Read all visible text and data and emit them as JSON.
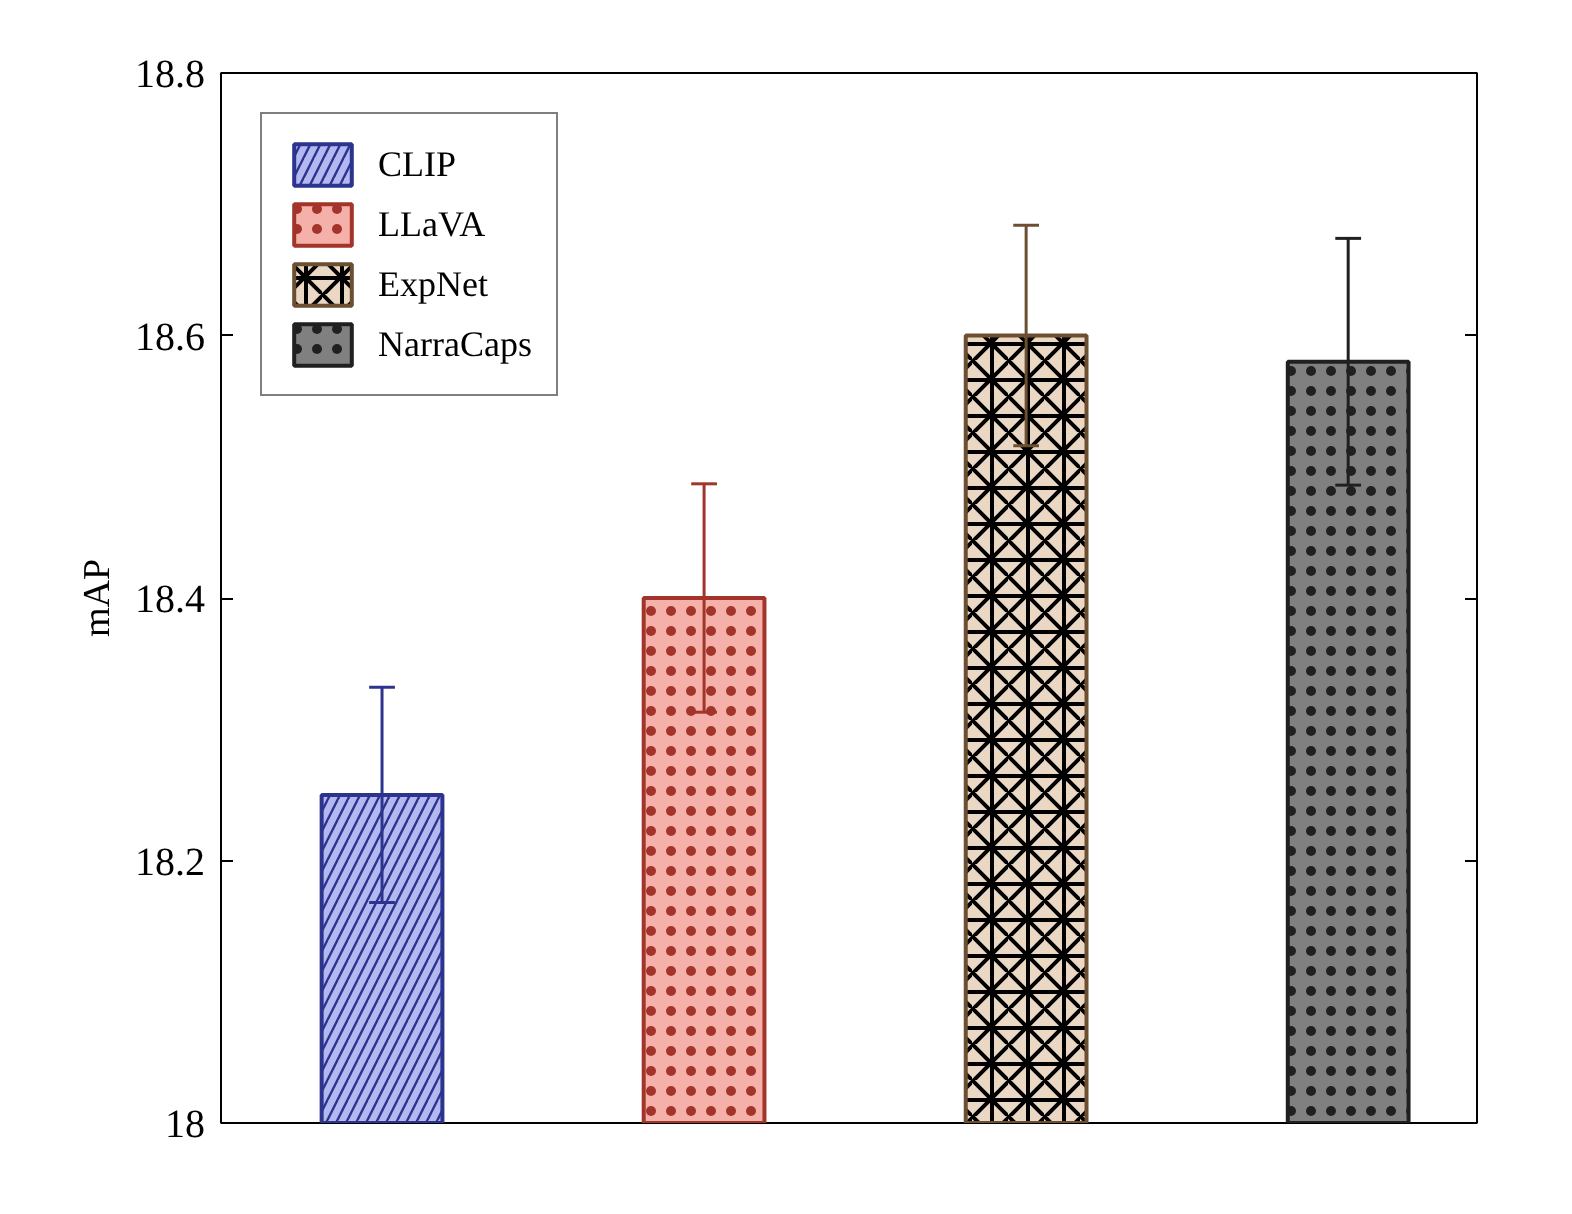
{
  "chart_data": {
    "type": "bar",
    "ylabel": "mAP",
    "categories": [
      null,
      null,
      null,
      null
    ],
    "series": [
      {
        "name": "CLIP",
        "color": "#b3b8f0",
        "values": [
          18.25,
          null,
          null,
          null
        ],
        "errors": [
          0.082,
          null,
          null,
          null
        ]
      },
      {
        "name": "LLaVA",
        "color": "#f5b0aa",
        "values": [
          null,
          18.4,
          null,
          null
        ],
        "errors": [
          null,
          0.087,
          null,
          null
        ]
      },
      {
        "name": "ExpNet",
        "color": "#ead8c5",
        "values": [
          null,
          null,
          18.6,
          null
        ],
        "errors": [
          null,
          null,
          0.084,
          null
        ]
      },
      {
        "name": "NarraCaps",
        "color": "#808080",
        "values": [
          null,
          null,
          null,
          18.58
        ],
        "errors": [
          null,
          null,
          null,
          0.094
        ]
      }
    ],
    "ylim": [
      18,
      18.8
    ],
    "yticks": [
      18,
      18.2,
      18.4,
      18.6,
      18.8
    ],
    "stacked": true,
    "grid": false,
    "legend": "top left",
    "tick_labels": "y"
  }
}
